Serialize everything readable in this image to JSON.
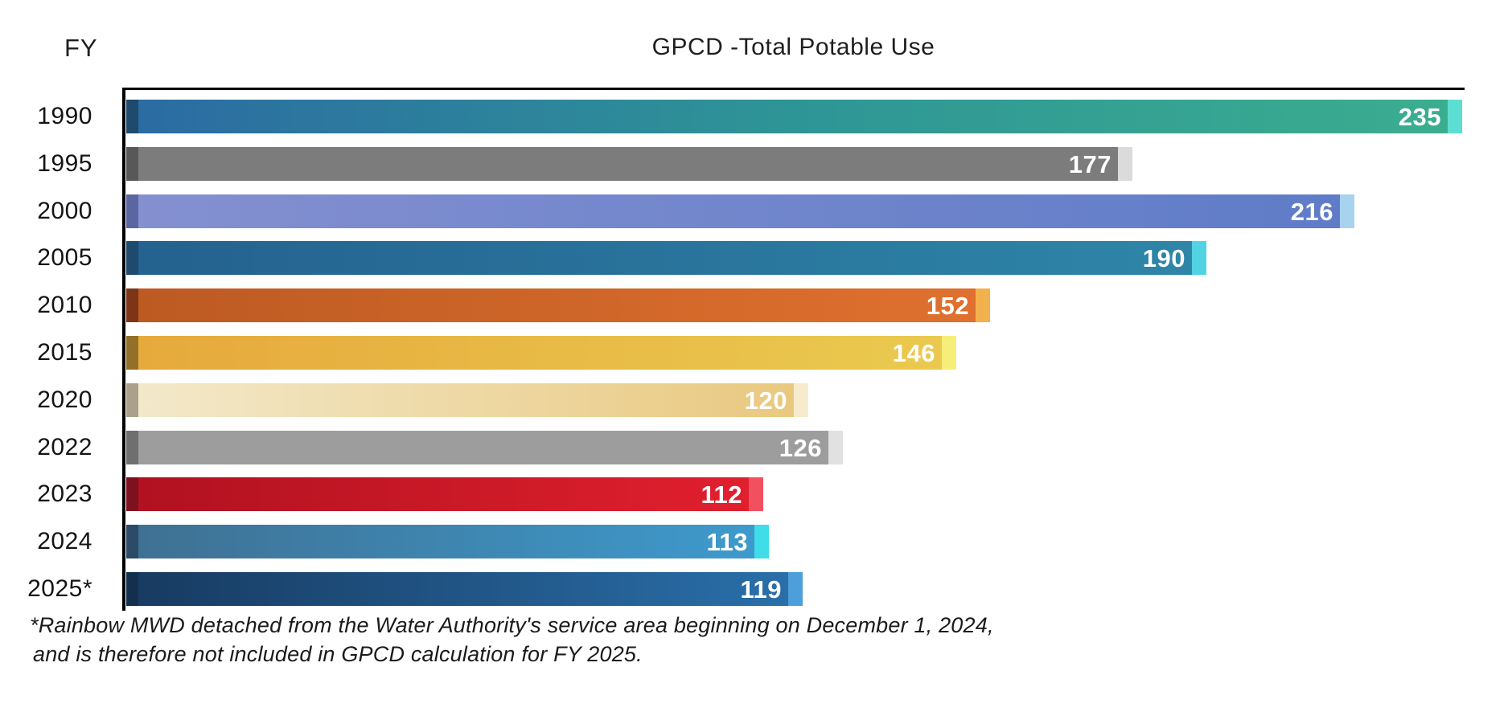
{
  "header": {
    "fy_label": "FY",
    "title": "GPCD -Total Potable Use"
  },
  "footnote": {
    "line1": "*Rainbow MWD detached from the Water Authority's service area beginning on December 1, 2024,",
    "line2": "and is therefore not included in GPCD calculation for FY 2025."
  },
  "chart_data": {
    "type": "bar",
    "orientation": "horizontal",
    "title": "GPCD -Total Potable Use",
    "xlabel": "",
    "ylabel": "FY",
    "xlim": [
      0,
      236
    ],
    "grid": false,
    "legend": "none",
    "value_labels": "inside-end, white bold",
    "categories": [
      "1990",
      "1995",
      "2000",
      "2005",
      "2010",
      "2015",
      "2020",
      "2022",
      "2023",
      "2024",
      "2025*"
    ],
    "values": [
      235,
      177,
      216,
      190,
      152,
      146,
      120,
      126,
      112,
      113,
      119
    ],
    "bar_styles": [
      {
        "edge": "#1E4A6D",
        "gradient": [
          "#2B6BA3",
          "#2E9596",
          "#3BAE8F"
        ],
        "cap": "#5CDED2"
      },
      {
        "edge": "#585858",
        "gradient": [
          "#7C7C7C",
          "#7C7C7C"
        ],
        "cap": "#DBDBDB"
      },
      {
        "edge": "#5A66A0",
        "gradient": [
          "#8490D0",
          "#5F7CC8"
        ],
        "cap": "#A7D3EE"
      },
      {
        "edge": "#1E4A6D",
        "gradient": [
          "#24618F",
          "#2E86A8"
        ],
        "cap": "#52D3E3"
      },
      {
        "edge": "#7C3517",
        "gradient": [
          "#BC5A22",
          "#E0712F"
        ],
        "cap": "#F2B14D"
      },
      {
        "edge": "#937029",
        "gradient": [
          "#E6A93C",
          "#EACA4F"
        ],
        "cap": "#F6EE78"
      },
      {
        "edge": "#ABA18A",
        "gradient": [
          "#F3E9CB",
          "#E9C87E"
        ],
        "cap": "#F6EBCD"
      },
      {
        "edge": "#6F6F6F",
        "gradient": [
          "#9D9D9D",
          "#9D9D9D"
        ],
        "cap": "#E1E1E1"
      },
      {
        "edge": "#7E1120",
        "gradient": [
          "#B01120",
          "#E2202E"
        ],
        "cap": "#F3505F"
      },
      {
        "edge": "#2B4B68",
        "gradient": [
          "#3F7092",
          "#3E9BCE"
        ],
        "cap": "#3EDDE8"
      },
      {
        "edge": "#12304E",
        "gradient": [
          "#173A60",
          "#2A70AB"
        ],
        "cap": "#4D9FD9"
      }
    ]
  }
}
